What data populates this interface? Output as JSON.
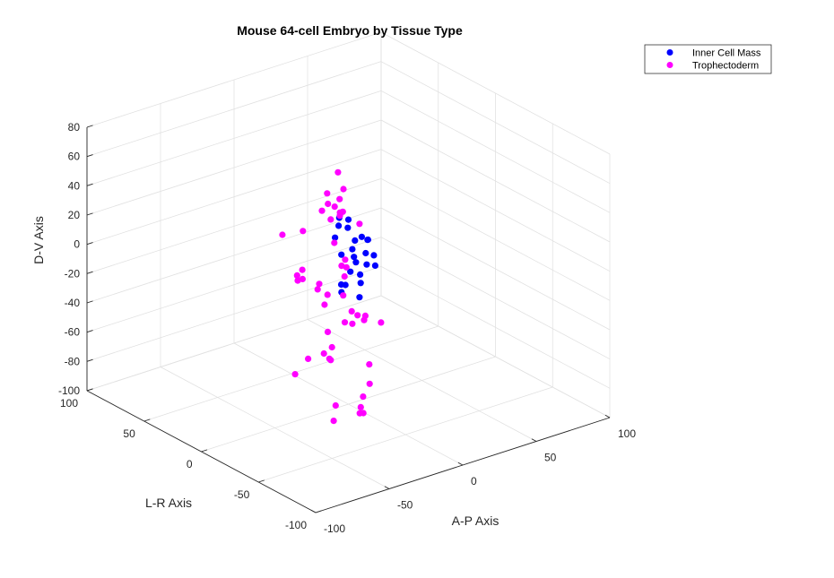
{
  "chart_data": {
    "type": "scatter",
    "title": "Mouse 64-cell Embryo by Tissue Type",
    "xlabel": "A-P Axis",
    "ylabel": "L-R Axis",
    "zlabel": "D-V Axis",
    "xlim": [
      -100,
      100
    ],
    "ylim": [
      -100,
      100
    ],
    "zlim": [
      -100,
      80
    ],
    "xticks": [
      "-100",
      "-50",
      "0",
      "50",
      "100"
    ],
    "yticks": [
      "-100",
      "-50",
      "0",
      "50",
      "100"
    ],
    "zticks": [
      "-100",
      "-80",
      "-60",
      "-40",
      "-20",
      "0",
      "20",
      "40",
      "60",
      "80"
    ],
    "grid": true,
    "legend_position": "top-right",
    "series": [
      {
        "name": "Inner Cell Mass",
        "color": "#0000ff",
        "points": [
          [
            -12,
            -22,
            10
          ],
          [
            -2,
            -2,
            22
          ],
          [
            4,
            -10,
            6
          ],
          [
            -20,
            -36,
            10
          ],
          [
            -22,
            -38,
            -4
          ],
          [
            -2,
            -6,
            9
          ],
          [
            0,
            8,
            24
          ],
          [
            12,
            24,
            8
          ],
          [
            8,
            22,
            2
          ],
          [
            -8,
            -4,
            -14
          ],
          [
            -14,
            -12,
            -14
          ],
          [
            3,
            10,
            -3
          ],
          [
            6,
            -4,
            14
          ],
          [
            10,
            8,
            -6
          ],
          [
            20,
            20,
            -3
          ],
          [
            27,
            18,
            -4
          ],
          [
            32,
            24,
            -8
          ],
          [
            28,
            36,
            2
          ],
          [
            28,
            20,
            -22
          ],
          [
            36,
            24,
            -20
          ],
          [
            27,
            24,
            -36
          ],
          [
            40,
            28,
            -30
          ],
          [
            34,
            42,
            -38
          ],
          [
            26,
            36,
            -42
          ]
        ]
      },
      {
        "name": "Trophectoderm",
        "color": "#ff00ff",
        "points": [
          [
            -64,
            -38,
            21
          ],
          [
            -70,
            -50,
            29
          ],
          [
            -48,
            -22,
            43
          ],
          [
            -62,
            -22,
            45
          ],
          [
            -26,
            -26,
            48
          ],
          [
            -32,
            -18,
            50
          ],
          [
            -14,
            -6,
            42
          ],
          [
            -16,
            -2,
            50
          ],
          [
            10,
            22,
            46
          ],
          [
            -6,
            0,
            42
          ],
          [
            6,
            12,
            40
          ],
          [
            -22,
            -16,
            24
          ],
          [
            -3,
            14,
            32
          ],
          [
            -80,
            -76,
            36
          ],
          [
            -80,
            -58,
            38
          ],
          [
            -66,
            -64,
            16
          ],
          [
            -54,
            -44,
            18
          ],
          [
            -50,
            -24,
            18
          ],
          [
            -78,
            -86,
            0
          ],
          [
            -56,
            -54,
            -10
          ],
          [
            -74,
            -60,
            -20
          ],
          [
            -86,
            -64,
            -25
          ],
          [
            -44,
            -40,
            -38
          ],
          [
            -12,
            -44,
            -22
          ],
          [
            -20,
            -24,
            10
          ],
          [
            16,
            36,
            6
          ],
          [
            34,
            34,
            -2
          ],
          [
            30,
            46,
            2
          ],
          [
            4,
            10,
            26
          ],
          [
            6,
            26,
            -38
          ],
          [
            32,
            44,
            -30
          ],
          [
            14,
            24,
            -20
          ],
          [
            26,
            38,
            -50
          ],
          [
            24,
            28,
            -56
          ],
          [
            30,
            42,
            -40
          ],
          [
            26,
            30,
            -66
          ],
          [
            28,
            28,
            -60
          ],
          [
            -4,
            -2,
            -42
          ],
          [
            -20,
            -44,
            -48
          ],
          [
            -12,
            6,
            -64
          ],
          [
            -18,
            -36,
            -74
          ],
          [
            -12,
            0,
            -66
          ],
          [
            -26,
            -52,
            -56
          ],
          [
            -60,
            -88,
            -46
          ],
          [
            -60,
            -66,
            -54
          ],
          [
            -66,
            -72,
            -60
          ],
          [
            -28,
            -46,
            -78
          ],
          [
            -24,
            -44,
            -80
          ],
          [
            -8,
            -24,
            -30
          ],
          [
            -4,
            -20,
            -30
          ]
        ]
      }
    ]
  }
}
